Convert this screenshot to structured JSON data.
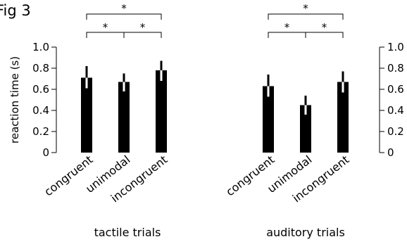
{
  "figure_label": "Fig 3",
  "chart_data": [
    {
      "type": "bar",
      "title": "",
      "xlabel": "tactile trials",
      "ylabel": "reaction time (s)",
      "ylim": [
        0,
        1.0
      ],
      "yticks": [
        "0",
        "0.2",
        "0.4",
        "0.6",
        "0.8",
        "1.0"
      ],
      "categories": [
        "congruent",
        "unimodal",
        "incongruent"
      ],
      "values": [
        0.71,
        0.67,
        0.78
      ],
      "error_low": [
        0.61,
        0.58,
        0.68
      ],
      "error_high": [
        0.82,
        0.75,
        0.87
      ],
      "bar_color": "#000000",
      "error_color_inside": "#ffffff",
      "error_color_outside": "#000000",
      "significance": [
        {
          "from": 0,
          "to": 2,
          "label": "*",
          "level": 2
        },
        {
          "from": 0,
          "to": 1,
          "label": "*",
          "level": 1
        },
        {
          "from": 1,
          "to": 2,
          "label": "*",
          "level": 1
        }
      ]
    },
    {
      "type": "bar",
      "title": "",
      "xlabel": "auditory trials",
      "ylabel": "",
      "ylim": [
        0,
        1.0
      ],
      "yticks": [
        "0",
        "0.2",
        "0.4",
        "0.6",
        "0.8",
        "1.0"
      ],
      "categories": [
        "congruent",
        "unimodal",
        "incongruent"
      ],
      "values": [
        0.63,
        0.45,
        0.67
      ],
      "error_low": [
        0.53,
        0.36,
        0.57
      ],
      "error_high": [
        0.74,
        0.54,
        0.77
      ],
      "bar_color": "#000000",
      "error_color_inside": "#ffffff",
      "error_color_outside": "#000000",
      "significance": [
        {
          "from": 0,
          "to": 2,
          "label": "*",
          "level": 2
        },
        {
          "from": 0,
          "to": 1,
          "label": "*",
          "level": 1
        },
        {
          "from": 1,
          "to": 2,
          "label": "*",
          "level": 1
        }
      ]
    }
  ]
}
